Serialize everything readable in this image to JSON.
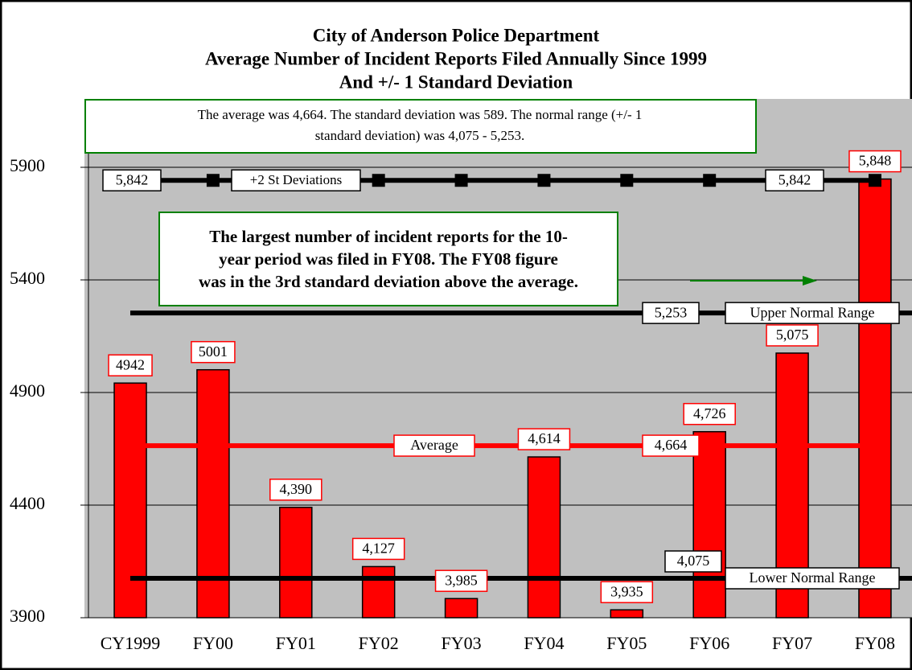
{
  "chart_data": {
    "type": "bar",
    "title": [
      "City of Anderson Police Department",
      "Average Number of Incident Reports Filed Annually Since 1999",
      "And +/- 1 Standard Deviation"
    ],
    "categories": [
      "CY1999",
      "FY00",
      "FY01",
      "FY02",
      "FY03",
      "FY04",
      "FY05",
      "FY06",
      "FY07",
      "FY08"
    ],
    "values": [
      4942,
      5001,
      4390,
      4127,
      3985,
      4614,
      3935,
      4726,
      5075,
      5848
    ],
    "value_labels": [
      "4942",
      "5001",
      "4,390",
      "4,127",
      "3,985",
      "4,614",
      "3,935",
      "4,726",
      "5,075",
      "5,848"
    ],
    "color": "#ff0000",
    "ylim": [
      3900,
      6200
    ],
    "yticks": [
      3900,
      4400,
      4900,
      5400,
      5900
    ],
    "grid": true,
    "reference_lines": [
      {
        "name": "+2 St Deviations",
        "value": 5842,
        "value_label": "5,842",
        "color": "#000000"
      },
      {
        "name": "Upper Normal Range",
        "value": 5253,
        "value_label": "5,253",
        "color": "#000000"
      },
      {
        "name": "Average",
        "value": 4664,
        "value_label": "4,664",
        "color": "#ff0000"
      },
      {
        "name": "Lower Normal Range",
        "value": 4075,
        "value_label": "4,075",
        "color": "#000000"
      }
    ],
    "annotations": [
      [
        "The average was 4,664.  The standard deviation was 589.  The normal range (+/- 1",
        "standard deviation) was 4,075 - 5,253."
      ],
      [
        "The largest number of incident reports for the 10-",
        "year period was filed in FY08.  The FY08 figure",
        "was in the 3rd standard deviation above the average."
      ]
    ]
  }
}
